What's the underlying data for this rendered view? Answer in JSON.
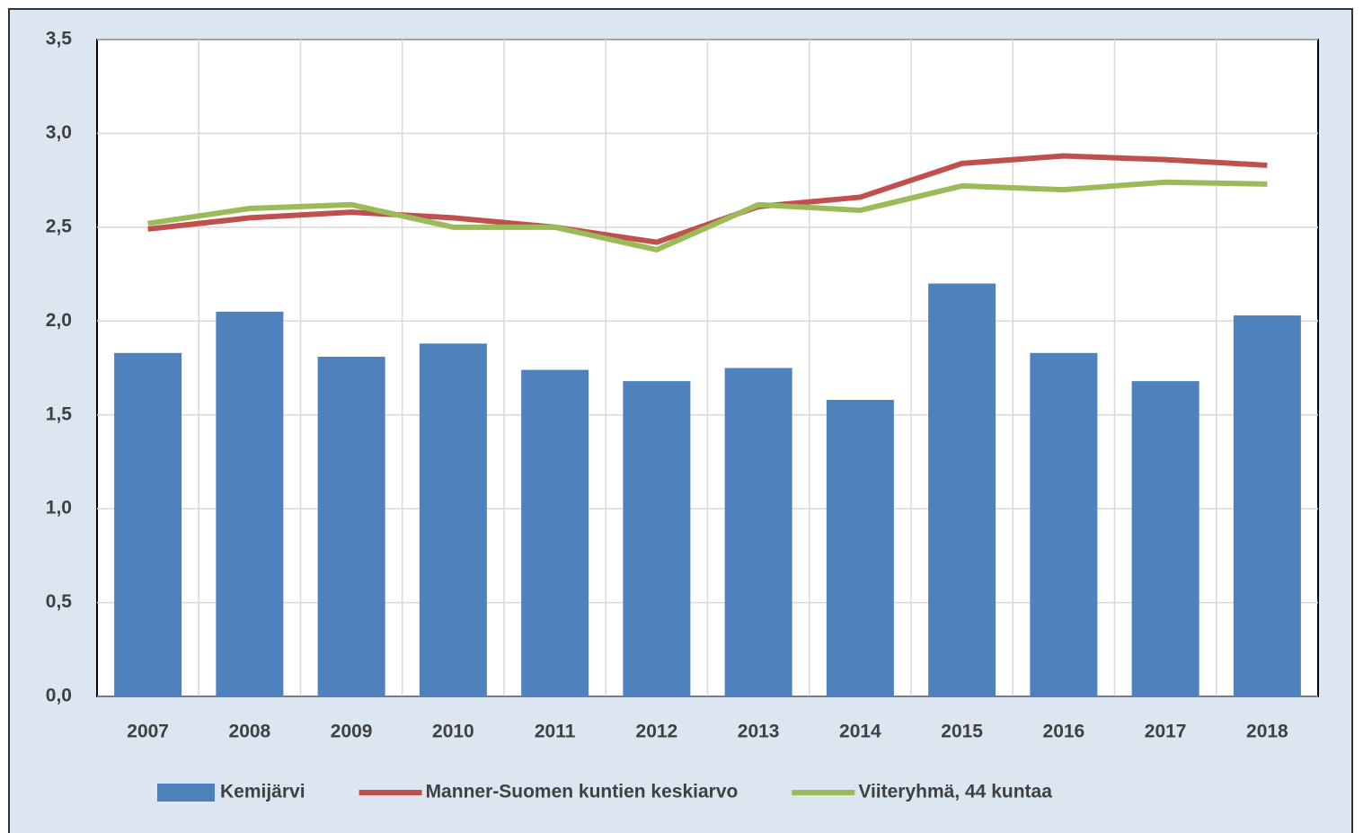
{
  "chart_data": {
    "type": "combo",
    "categories": [
      "2007",
      "2008",
      "2009",
      "2010",
      "2011",
      "2012",
      "2013",
      "2014",
      "2015",
      "2016",
      "2017",
      "2018"
    ],
    "series": [
      {
        "name": "Kemijärvi",
        "type": "bar",
        "color": "#4f81bd",
        "values": [
          1.83,
          2.05,
          1.81,
          1.88,
          1.74,
          1.68,
          1.75,
          1.58,
          2.2,
          1.83,
          1.68,
          2.03
        ]
      },
      {
        "name": "Manner-Suomen kuntien keskiarvo",
        "type": "line",
        "color": "#c0504d",
        "values": [
          2.49,
          2.55,
          2.58,
          2.55,
          2.5,
          2.42,
          2.61,
          2.66,
          2.84,
          2.88,
          2.86,
          2.83
        ]
      },
      {
        "name": "Viiteryhmä, 44  kuntaa",
        "type": "line",
        "color": "#9bbb59",
        "values": [
          2.52,
          2.6,
          2.62,
          2.5,
          2.5,
          2.38,
          2.62,
          2.59,
          2.72,
          2.7,
          2.74,
          2.73
        ]
      }
    ],
    "ylim": [
      0,
      3.5
    ],
    "yticks": [
      {
        "value": 0,
        "label": "0,0"
      },
      {
        "value": 0.5,
        "label": "0,5"
      },
      {
        "value": 1,
        "label": "1,0"
      },
      {
        "value": 1.5,
        "label": "1,5"
      },
      {
        "value": 2,
        "label": "2,0"
      },
      {
        "value": 2.5,
        "label": "2,5"
      },
      {
        "value": 3,
        "label": "3,0"
      },
      {
        "value": 3.5,
        "label": "3,5"
      }
    ],
    "grid": true,
    "legend": "bottom"
  }
}
